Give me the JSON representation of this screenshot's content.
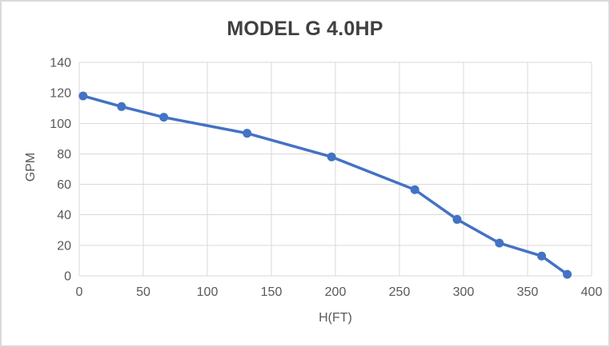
{
  "frame": {
    "background": "#ffffff",
    "border_color": "#d9d9d9"
  },
  "chart_data": {
    "type": "line",
    "title": "MODEL G 4.0HP",
    "xlabel": "H(FT)",
    "ylabel": "GPM",
    "series": [
      {
        "name": "pump-curve",
        "points": [
          {
            "x": 3,
            "y": 118
          },
          {
            "x": 33,
            "y": 111
          },
          {
            "x": 66,
            "y": 104
          },
          {
            "x": 131,
            "y": 93.5
          },
          {
            "x": 197,
            "y": 78
          },
          {
            "x": 262,
            "y": 56.5
          },
          {
            "x": 295,
            "y": 37
          },
          {
            "x": 328,
            "y": 21.5
          },
          {
            "x": 361,
            "y": 13
          },
          {
            "x": 381,
            "y": 1
          }
        ]
      }
    ],
    "xlim": [
      0,
      400
    ],
    "ylim": [
      0,
      140
    ],
    "x_ticks": [
      0,
      50,
      100,
      150,
      200,
      250,
      300,
      350,
      400
    ],
    "y_ticks": [
      0,
      20,
      40,
      60,
      80,
      100,
      120,
      140
    ],
    "grid": true,
    "legend": "none",
    "line_color": "#4472c4",
    "marker": "circle",
    "gridline_color": "#d9d9d9",
    "tick_label_color": "#595959",
    "axis_label_color": "#595959",
    "title_color": "#404040"
  }
}
